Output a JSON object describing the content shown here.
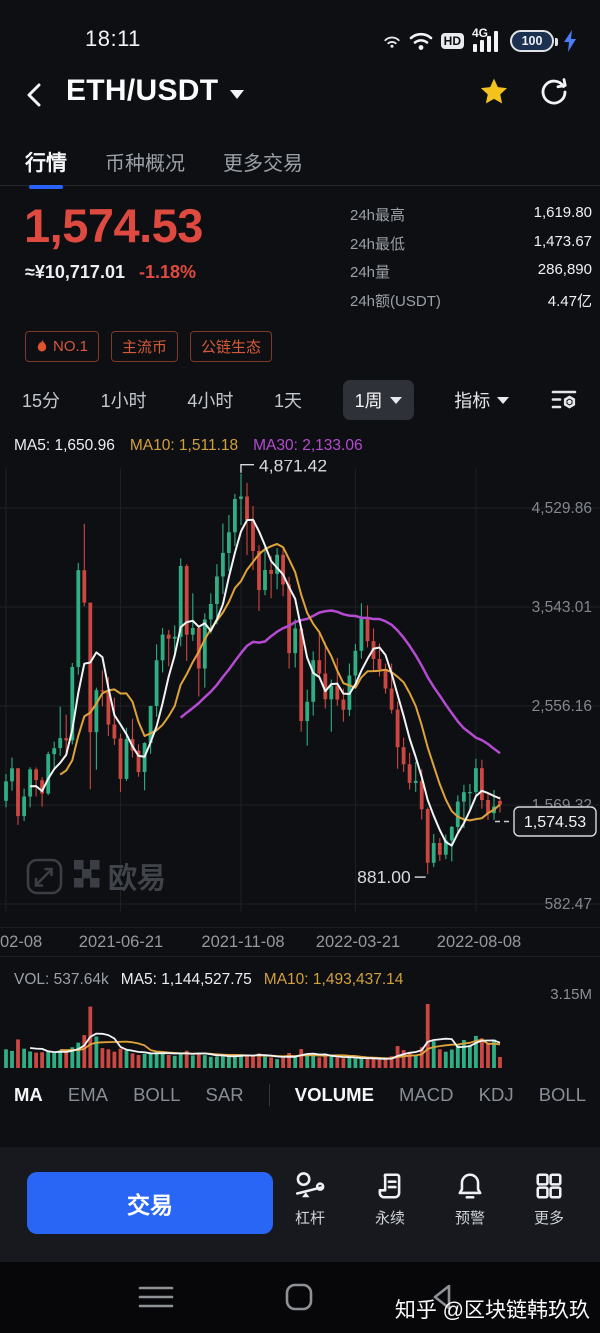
{
  "status_bar": {
    "time": "18:11",
    "hd": "HD",
    "network": "4G",
    "battery": "100"
  },
  "header": {
    "title": "ETH/USDT"
  },
  "tabs": {
    "items": [
      {
        "label": "行情"
      },
      {
        "label": "币种概况"
      },
      {
        "label": "更多交易"
      }
    ]
  },
  "price": {
    "last": "1,574.53",
    "fiat": "≈¥10,717.01",
    "change": "-1.18%"
  },
  "stats": {
    "rows": [
      {
        "label": "24h最高",
        "value": "1,619.80"
      },
      {
        "label": "24h最低",
        "value": "1,473.67"
      },
      {
        "label": "24h量",
        "value": "286,890"
      },
      {
        "label": "24h额(USDT)",
        "value": "4.47亿"
      }
    ]
  },
  "badges": {
    "items": [
      {
        "label": "NO.1"
      },
      {
        "label": "主流币"
      },
      {
        "label": "公链生态"
      }
    ]
  },
  "timeframes": {
    "items": [
      "15分",
      "1小时",
      "4小时",
      "1天"
    ],
    "selected": "1周",
    "indicator_label": "指标"
  },
  "ma_labels": {
    "ma5": "MA5: 1,650.96",
    "ma10": "MA10: 1,511.18",
    "ma30": "MA30: 2,133.06"
  },
  "volume_labels": {
    "vol": "VOL: 537.64k",
    "ma5": "MA5: 1,144,527.75",
    "ma10": "MA10: 1,493,437.14",
    "scale_max": "3.15M"
  },
  "indicator_tabs": {
    "items": [
      "MA",
      "EMA",
      "BOLL",
      "SAR",
      "VOLUME",
      "MACD",
      "KDJ",
      "BOLL"
    ],
    "active": [
      "MA",
      "VOLUME"
    ]
  },
  "actions": {
    "trade": "交易",
    "items": [
      {
        "label": "杠杆"
      },
      {
        "label": "永续"
      },
      {
        "label": "预警"
      },
      {
        "label": "更多"
      }
    ]
  },
  "nav_watermark": "知乎 @区块链韩玖玖",
  "brand": {
    "name": "欧易"
  },
  "chart_data": {
    "type": "candlestick",
    "title": "ETH/USDT weekly (1周)",
    "y_axis": [
      {
        "v": 4529.86,
        "label": "4,529.86"
      },
      {
        "v": 3543.01,
        "label": "3,543.01"
      },
      {
        "v": 2556.16,
        "label": "2,556.16"
      },
      {
        "v": 1569.32,
        "label": "1,569.32"
      },
      {
        "v": 582.47,
        "label": "582.47"
      }
    ],
    "x_ticks": [
      {
        "i": 0,
        "label": "02-08"
      },
      {
        "i": 19,
        "label": "2021-06-21"
      },
      {
        "i": 39,
        "label": "2021-11-08"
      },
      {
        "i": 58,
        "label": "2022-03-21"
      },
      {
        "i": 78,
        "label": "2022-08-08"
      }
    ],
    "annotations": {
      "high": {
        "i": 39,
        "price": 4871.42,
        "label": "4,871.42"
      },
      "low": {
        "i": 70,
        "price": 881.0,
        "label": "881.00"
      },
      "current": {
        "price": 1574.53,
        "label": "1,574.53"
      }
    },
    "colors": {
      "up": "#2fae83",
      "down": "#cb4742",
      "ma5": "#f2f3f5",
      "ma10": "#dfa33c",
      "ma30": "#b44bd2",
      "axis_text": "#82868e",
      "grid": "#1d2025",
      "annotation": "#d8dadd"
    },
    "volume_max": 3.15,
    "candles": [
      [
        1612,
        1878,
        1546,
        1805,
        0.92
      ],
      [
        1805,
        2042,
        1712,
        1935,
        0.84
      ],
      [
        1935,
        1936,
        1371,
        1459,
        1.41
      ],
      [
        1459,
        1733,
        1410,
        1654,
        0.95
      ],
      [
        1654,
        1945,
        1546,
        1924,
        0.81
      ],
      [
        1924,
        1943,
        1655,
        1817,
        0.76
      ],
      [
        1817,
        1846,
        1552,
        1684,
        0.78
      ],
      [
        1684,
        2101,
        1668,
        2077,
        0.82
      ],
      [
        2077,
        2200,
        1930,
        2136,
        0.74
      ],
      [
        2136,
        2548,
        2060,
        2236,
        0.88
      ],
      [
        2236,
        2468,
        2055,
        2213,
        0.77
      ],
      [
        2213,
        2985,
        2172,
        2945,
        1.02
      ],
      [
        2945,
        3983,
        2868,
        3910,
        1.25
      ],
      [
        3910,
        4372,
        3550,
        3587,
        1.62
      ],
      [
        3587,
        3587,
        1728,
        2295,
        3.02
      ],
      [
        2295,
        2740,
        1921,
        2714,
        1.55
      ],
      [
        2714,
        2910,
        2553,
        2712,
        0.98
      ],
      [
        2712,
        2845,
        2257,
        2372,
        0.92
      ],
      [
        2372,
        2640,
        2168,
        2232,
        0.8
      ],
      [
        2232,
        2280,
        1700,
        1829,
        0.95
      ],
      [
        1829,
        2340,
        1810,
        2226,
        0.86
      ],
      [
        2226,
        2430,
        2042,
        2111,
        0.72
      ],
      [
        2111,
        2175,
        1850,
        1898,
        0.64
      ],
      [
        1898,
        2195,
        1716,
        2187,
        0.69
      ],
      [
        2187,
        2560,
        2080,
        2556,
        0.71
      ],
      [
        2556,
        3170,
        2450,
        3012,
        0.83
      ],
      [
        3012,
        3333,
        2890,
        3268,
        0.78
      ],
      [
        3268,
        3315,
        2952,
        3227,
        0.64
      ],
      [
        3227,
        3360,
        3062,
        3246,
        0.6
      ],
      [
        3246,
        4028,
        3152,
        3952,
        0.75
      ],
      [
        3952,
        3970,
        3005,
        3267,
        0.85
      ],
      [
        3267,
        3680,
        3205,
        3334,
        0.62
      ],
      [
        3334,
        3343,
        2651,
        2930,
        0.74
      ],
      [
        2930,
        3480,
        2740,
        3419,
        0.63
      ],
      [
        3419,
        3680,
        3275,
        3573,
        0.55
      ],
      [
        3573,
        3970,
        3370,
        3847,
        0.56
      ],
      [
        3847,
        4375,
        3672,
        4082,
        0.63
      ],
      [
        4082,
        4460,
        3900,
        4288,
        0.54
      ],
      [
        4288,
        4670,
        4150,
        4620,
        0.6
      ],
      [
        4620,
        4871.42,
        4360,
        4644,
        0.68
      ],
      [
        4644,
        4780,
        4060,
        4411,
        0.64
      ],
      [
        4411,
        4550,
        3912,
        4101,
        0.58
      ],
      [
        4101,
        4160,
        3503,
        3712,
        0.72
      ],
      [
        3712,
        4146,
        3660,
        3912,
        0.56
      ],
      [
        3912,
        4050,
        3631,
        3874,
        0.52
      ],
      [
        3874,
        4130,
        3720,
        4063,
        0.44
      ],
      [
        4063,
        4126,
        3650,
        3767,
        0.5
      ],
      [
        3767,
        3845,
        2930,
        3083,
        0.74
      ],
      [
        3083,
        3420,
        2940,
        3330,
        0.55
      ],
      [
        3330,
        3340,
        2300,
        2406,
        0.93
      ],
      [
        2406,
        2720,
        2160,
        2598,
        0.72
      ],
      [
        2598,
        3100,
        2460,
        3013,
        0.6
      ],
      [
        3013,
        3285,
        2840,
        2880,
        0.52
      ],
      [
        2880,
        3190,
        2530,
        2623,
        0.58
      ],
      [
        2623,
        2820,
        2300,
        2760,
        0.61
      ],
      [
        2760,
        3035,
        2560,
        2620,
        0.51
      ],
      [
        2620,
        2730,
        2400,
        2518,
        0.48
      ],
      [
        2518,
        2980,
        2455,
        2860,
        0.5
      ],
      [
        2860,
        3175,
        2790,
        3106,
        0.46
      ],
      [
        3106,
        3580,
        3030,
        3443,
        0.52
      ],
      [
        3443,
        3560,
        3140,
        3202,
        0.44
      ],
      [
        3202,
        3330,
        2910,
        3025,
        0.46
      ],
      [
        3025,
        3180,
        2850,
        2921,
        0.41
      ],
      [
        2921,
        2980,
        2680,
        2730,
        0.43
      ],
      [
        2730,
        2980,
        2480,
        2520,
        0.58
      ],
      [
        2520,
        2600,
        1930,
        2145,
        1.08
      ],
      [
        2145,
        2240,
        1900,
        1975,
        0.88
      ],
      [
        1975,
        2090,
        1723,
        1790,
        0.78
      ],
      [
        1790,
        2000,
        1700,
        1810,
        0.62
      ],
      [
        1810,
        1925,
        1425,
        1528,
        1.02
      ],
      [
        1528,
        1545,
        881,
        994,
        3.15
      ],
      [
        994,
        1280,
        950,
        1191,
        1.32
      ],
      [
        1191,
        1240,
        1010,
        1073,
        0.92
      ],
      [
        1073,
        1275,
        1030,
        1216,
        0.8
      ],
      [
        1216,
        1360,
        1006,
        1351,
        0.91
      ],
      [
        1351,
        1665,
        1295,
        1603,
        1.18
      ],
      [
        1603,
        1770,
        1340,
        1697,
        1.38
      ],
      [
        1697,
        1780,
        1525,
        1699,
        1.12
      ],
      [
        1699,
        2030,
        1650,
        1936,
        1.58
      ],
      [
        1936,
        2021,
        1532,
        1619,
        1.46
      ],
      [
        1619,
        1680,
        1420,
        1487,
        1.22
      ],
      [
        1487,
        1720,
        1422,
        1554,
        1.4
      ],
      [
        1610,
        1652,
        1495,
        1574.53,
        0.54
      ]
    ]
  }
}
